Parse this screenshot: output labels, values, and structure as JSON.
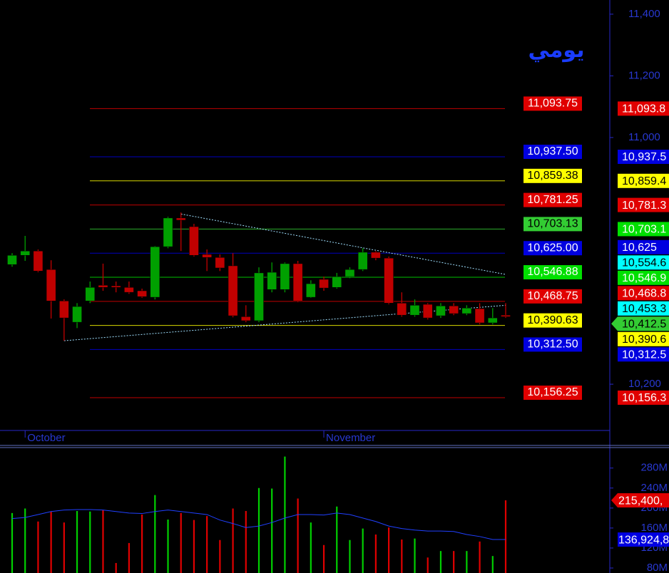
{
  "chart_data": [
    {
      "type": "candlestick",
      "title": "يومي",
      "categories": [
        null,
        "October",
        null,
        null,
        null,
        null,
        null,
        null,
        null,
        null,
        null,
        null,
        null,
        null,
        null,
        null,
        null,
        null,
        null,
        null,
        null,
        null,
        null,
        null,
        "November",
        null,
        null,
        null,
        null,
        null,
        null,
        null,
        null,
        null,
        null,
        null,
        null,
        null,
        null
      ],
      "ohlc": [
        [
          10588,
          10625,
          10581,
          10618
        ],
        [
          10618,
          10681,
          10600,
          10632
        ],
        [
          10632,
          10637,
          10563,
          10567
        ],
        [
          10572,
          10602,
          10413,
          10470
        ],
        [
          10470,
          10475,
          10341,
          10415
        ],
        [
          10401,
          10463,
          10382,
          10452
        ],
        [
          10470,
          10533,
          10463,
          10514
        ],
        [
          10521,
          10591,
          10503,
          10514
        ],
        [
          10519,
          10533,
          10498,
          10514
        ],
        [
          10514,
          10533,
          10493,
          10498
        ],
        [
          10503,
          10510,
          10480,
          10484
        ],
        [
          10482,
          10648,
          10475,
          10646
        ],
        [
          10646,
          10743,
          10641,
          10739
        ],
        [
          10739,
          10757,
          10632,
          10732
        ],
        [
          10711,
          10720,
          10614,
          10618
        ],
        [
          10621,
          10637,
          10567,
          10611
        ],
        [
          10611,
          10621,
          10567,
          10577
        ],
        [
          10584,
          10625,
          10417,
          10422
        ],
        [
          10419,
          10456,
          10401,
          10406
        ],
        [
          10406,
          10579,
          10401,
          10561
        ],
        [
          10507,
          10595,
          10498,
          10563
        ],
        [
          10507,
          10595,
          10498,
          10591
        ],
        [
          10591,
          10600,
          10466,
          10470
        ],
        [
          10482,
          10537,
          10480,
          10526
        ],
        [
          10540,
          10549,
          10503,
          10512
        ],
        [
          10514,
          10561,
          10510,
          10549
        ],
        [
          10549,
          10579,
          10544,
          10572
        ],
        [
          10572,
          10641,
          10567,
          10628
        ],
        [
          10628,
          10632,
          10602,
          10609
        ],
        [
          10609,
          10614,
          10459,
          10463
        ],
        [
          10463,
          10498,
          10419,
          10424
        ],
        [
          10424,
          10475,
          10419,
          10456
        ],
        [
          10459,
          10463,
          10410,
          10415
        ],
        [
          10422,
          10463,
          10415,
          10454
        ],
        [
          10454,
          10463,
          10424,
          10429
        ],
        [
          10429,
          10456,
          10424,
          10447
        ],
        [
          10445,
          10463,
          10394,
          10399
        ],
        [
          10399,
          10447,
          10394,
          10415
        ],
        [
          10424,
          10463,
          10415,
          10419
        ]
      ],
      "up_color": "#00a000",
      "down_color": "#c00000",
      "ylim": [
        10050,
        11446
      ],
      "yticks": [
        {
          "value": 11400,
          "label": "11,400"
        },
        {
          "value": 11200,
          "label": "11,200"
        },
        {
          "value": 11000,
          "label": "11,000"
        },
        {
          "value": 10200,
          "label": "10,200"
        }
      ],
      "levels": [
        {
          "value": 11093.75,
          "label": "11,093.75",
          "color": "#e00000"
        },
        {
          "value": 10937.5,
          "label": "10,937.50",
          "color": "#0000e0"
        },
        {
          "value": 10859.38,
          "label": "10,859.38",
          "color": "#ffff00"
        },
        {
          "value": 10781.25,
          "label": "10,781.25",
          "color": "#e00000"
        },
        {
          "value": 10703.13,
          "label": "10,703.13",
          "color": "#33cc33"
        },
        {
          "value": 10625.0,
          "label": "10,625.00",
          "color": "#0000e0"
        },
        {
          "value": 10546.88,
          "label": "10,546.88",
          "color": "#00e000"
        },
        {
          "value": 10468.75,
          "label": "10,468.75",
          "color": "#e00000"
        },
        {
          "value": 10390.63,
          "label": "10,390.63",
          "color": "#ffff00"
        },
        {
          "value": 10312.5,
          "label": "10,312.50",
          "color": "#0000e0"
        },
        {
          "value": 10156.25,
          "label": "10,156.25",
          "color": "#e00000"
        }
      ],
      "price_tags": [
        {
          "value": 11093.8,
          "label": "11,093.8",
          "color": "#e00000"
        },
        {
          "value": 10937.5,
          "label": "10,937.5",
          "color": "#0000e0"
        },
        {
          "value": 10859.4,
          "label": "10,859.4",
          "color": "#ffff00"
        },
        {
          "value": 10781.3,
          "label": "10,781.3",
          "color": "#e00000"
        },
        {
          "value": 10703.1,
          "label": "10,703.1",
          "color": "#00e000"
        },
        {
          "value": 10625,
          "label": "10,625",
          "color": "#0000e0"
        },
        {
          "value": 10554.6,
          "label": "10,554.6",
          "color": "#00ffff"
        },
        {
          "value": 10546.9,
          "label": "10,546.9",
          "color": "#00e000"
        },
        {
          "value": 10468.8,
          "label": "10,468.8",
          "color": "#e00000"
        },
        {
          "value": 10453.3,
          "label": "10,453.3",
          "color": "#00ffff"
        },
        {
          "value": 10412.5,
          "label": "10,412.5",
          "color": "#33cc33",
          "arrow": true
        },
        {
          "value": 10390.6,
          "label": "10,390.6",
          "color": "#ffff00"
        },
        {
          "value": 10312.5,
          "label": "10,312.5",
          "color": "#0000e0"
        },
        {
          "value": 10156.3,
          "label": "10,156.3",
          "color": "#e00000"
        }
      ],
      "trendlines": [
        {
          "x": [
            13,
            38
          ],
          "values": [
            10752,
            10556
          ],
          "color": "#a0e0ff"
        },
        {
          "x": [
            4,
            38
          ],
          "values": [
            10341,
            10456
          ],
          "color": "#a0e0ff"
        }
      ]
    },
    {
      "type": "volume",
      "values": [
        190000000,
        199000000,
        173000000,
        193000000,
        171000000,
        194000000,
        193000000,
        196000000,
        90000000,
        130000000,
        187000000,
        226000000,
        177000000,
        190000000,
        176000000,
        184000000,
        136000000,
        199000000,
        194000000,
        240000000,
        239000000,
        303000000,
        219000000,
        171000000,
        126000000,
        203000000,
        136000000,
        159000000,
        147000000,
        161000000,
        137000000,
        139000000,
        101000000,
        114000000,
        114000000,
        114000000,
        133000000,
        104000000,
        215400000
      ],
      "average": {
        "color": "#2040ff",
        "values": [
          179000000,
          181000000,
          187000000,
          193000000,
          196000000,
          197000000,
          197000000,
          196000000,
          193000000,
          190000000,
          189000000,
          193000000,
          196000000,
          193000000,
          190000000,
          187000000,
          176000000,
          169000000,
          161000000,
          164000000,
          171000000,
          180000000,
          187000000,
          187000000,
          186000000,
          190000000,
          187000000,
          180000000,
          173000000,
          164000000,
          159000000,
          156000000,
          154000000,
          154000000,
          153000000,
          147000000,
          143000000,
          137000000,
          137000000
        ]
      },
      "ylim": [
        70000000,
        321000000
      ],
      "yticks": [
        {
          "value": 280000000,
          "label": "280M"
        },
        {
          "value": 240000000,
          "label": "240M"
        },
        {
          "value": 200000000,
          "label": "200M"
        },
        {
          "value": 160000000,
          "label": "160M"
        },
        {
          "value": 120000000,
          "label": "120M"
        },
        {
          "value": 80000000,
          "label": "80M"
        }
      ],
      "tags": [
        {
          "value": 215400000,
          "label": "215,400,",
          "color": "#e00000",
          "arrow": true
        },
        {
          "value": 136924800,
          "label": "136,924,8",
          "color": "#0000e0"
        }
      ]
    }
  ]
}
